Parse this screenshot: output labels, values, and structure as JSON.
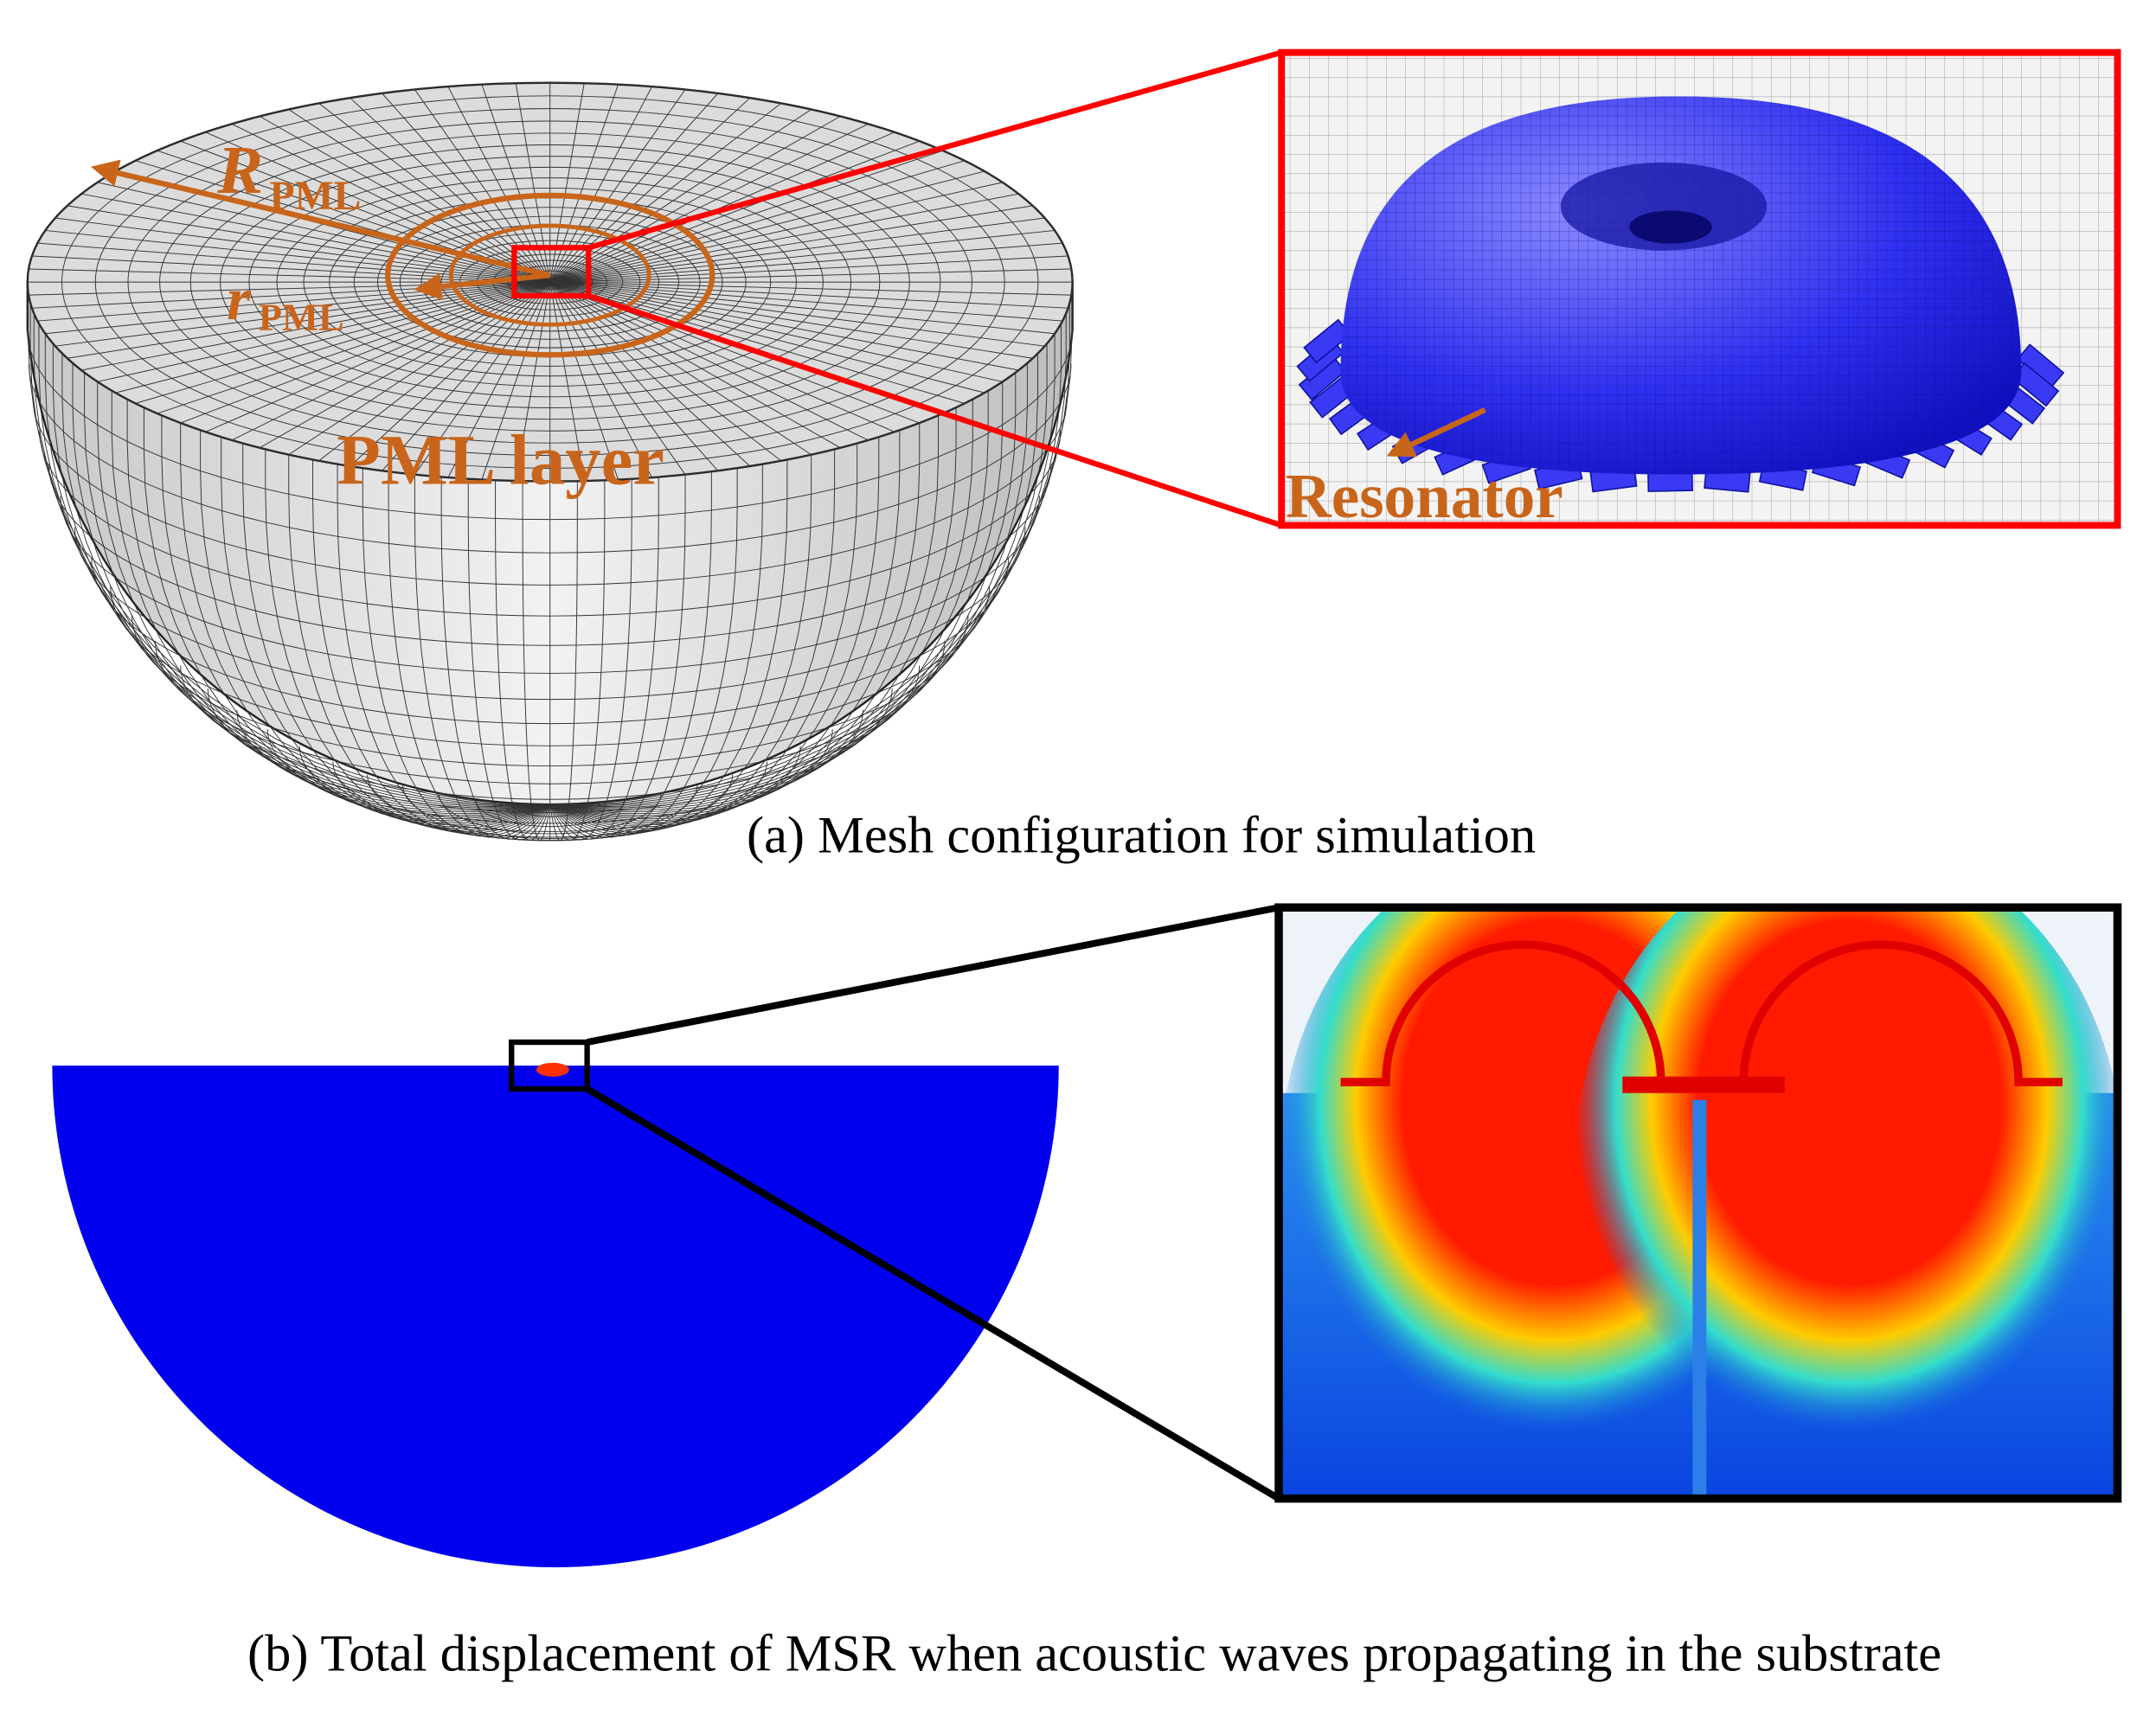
{
  "panel_a": {
    "labels": {
      "R": "R",
      "R_sub": "PML",
      "r": "r",
      "r_sub": "PML",
      "layer": "PML layer",
      "resonator": "Resonator"
    },
    "caption": "(a)  Mesh configuration for simulation"
  },
  "panel_b": {
    "caption": "(b)  Total displacement of MSR when  acoustic waves propagating in the substrate"
  }
}
